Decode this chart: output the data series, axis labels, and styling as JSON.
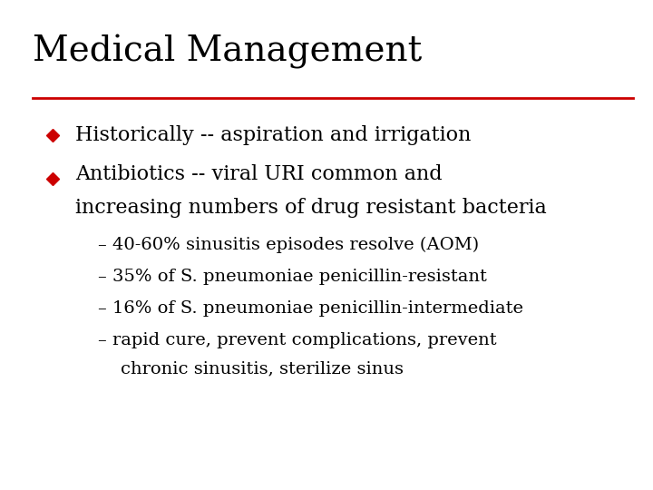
{
  "title": "Medical Management",
  "title_fontsize": 28,
  "title_color": "#000000",
  "line_color": "#cc0000",
  "background_color": "#ffffff",
  "bullet_color": "#cc0000",
  "bullet1": "Historically -- aspiration and irrigation",
  "bullet2_line1": "Antibiotics -- viral URI common and",
  "bullet2_line2": "increasing numbers of drug resistant bacteria",
  "sub1": "– 40-60% sinusitis episodes resolve (AOM)",
  "sub2": "– 35% of S. pneumoniae penicillin-resistant",
  "sub3": "– 16% of S. pneumoniae penicillin-intermediate",
  "sub4_line1": "– rapid cure, prevent complications, prevent",
  "sub4_line2": "    chronic sinusitis, sterilize sinus",
  "bullet_fontsize": 16,
  "sub_fontsize": 14,
  "diamond_size": 7
}
